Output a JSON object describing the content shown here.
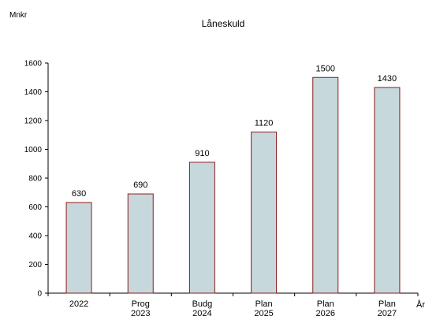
{
  "chart_data": {
    "type": "bar",
    "title": "Låneskuld",
    "ylabel": "Mnkr",
    "xlabel": "År",
    "categories": [
      [
        "2022"
      ],
      [
        "Prog",
        "2023"
      ],
      [
        "Budg",
        "2024"
      ],
      [
        "Plan",
        "2025"
      ],
      [
        "Plan",
        "2026"
      ],
      [
        "Plan",
        "2027"
      ]
    ],
    "values": [
      630,
      690,
      910,
      1120,
      1500,
      1430
    ],
    "data_labels": [
      "630",
      "690",
      "910",
      "1120",
      "1500",
      "1430"
    ],
    "yticks": [
      "0",
      "200",
      "400",
      "600",
      "800",
      "1000",
      "1200",
      "1400",
      "1600"
    ],
    "ylim": [
      0,
      1600
    ],
    "grid": false,
    "legend": "none",
    "colors": {
      "bar_fill": "#c7d8dc",
      "bar_stroke": "#8b1a1a",
      "axis": "#000000"
    }
  }
}
